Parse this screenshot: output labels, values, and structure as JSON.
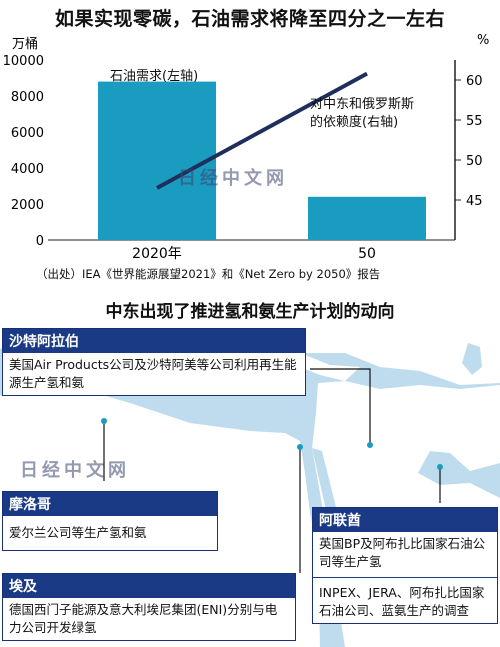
{
  "title": "如果实现零碳，石油需求将降至四分之一左右",
  "chart_data": {
    "type": "bar+line",
    "categories": [
      "2020年",
      "50"
    ],
    "series": [
      {
        "name": "石油需求(左轴)",
        "kind": "bar",
        "axis": "left",
        "values": [
          8800,
          2400
        ]
      },
      {
        "name": "对中东和俄罗斯的依赖度(右轴)",
        "kind": "line",
        "axis": "right",
        "values": [
          46.5,
          60.8
        ]
      }
    ],
    "left_axis": {
      "unit": "万桶",
      "ticks": [
        0,
        2000,
        4000,
        6000,
        8000,
        10000
      ],
      "ylim": [
        0,
        10000
      ]
    },
    "right_axis": {
      "unit": "%",
      "ticks": [
        45,
        50,
        55,
        60
      ],
      "ylim": [
        40,
        62.5
      ]
    },
    "labels": {
      "bar": "石油需求(左轴)",
      "line_1": "对中东和俄罗斯斯",
      "line_2": "的依赖度(右轴)"
    },
    "colors": {
      "bar": "#1a9cc0",
      "line": "#1f2f5c"
    }
  },
  "source": "（出处）IEA《世界能源展望2021》和《Net Zero by 2050》报告",
  "map": {
    "title": "中东出现了推进氢和氨生产计划的动向",
    "colors": {
      "sea": "#bfdcee",
      "land": "#ffffff",
      "box_head": "#1a3a86"
    },
    "boxes": {
      "saudi": {
        "name": "沙特阿拉伯",
        "body": "美国Air Products公司及沙特阿美等公司利用再生能源生产氢和氨"
      },
      "morocco": {
        "name": "摩洛哥",
        "body": "爱尔兰公司等生产氢和氨"
      },
      "egypt": {
        "name": "埃及",
        "body": "德国西门子能源及意大利埃尼集团(ENI)分别与电力公司开发绿氢"
      },
      "uae": {
        "name": "阿联酋",
        "body_1": "英国BP及阿布扎比国家石油公司等生产氢",
        "body_2": "INPEX、JERA、阿布扎比国家石油公司、蓝氨生产的调查"
      }
    }
  },
  "watermark": "日经中文网"
}
